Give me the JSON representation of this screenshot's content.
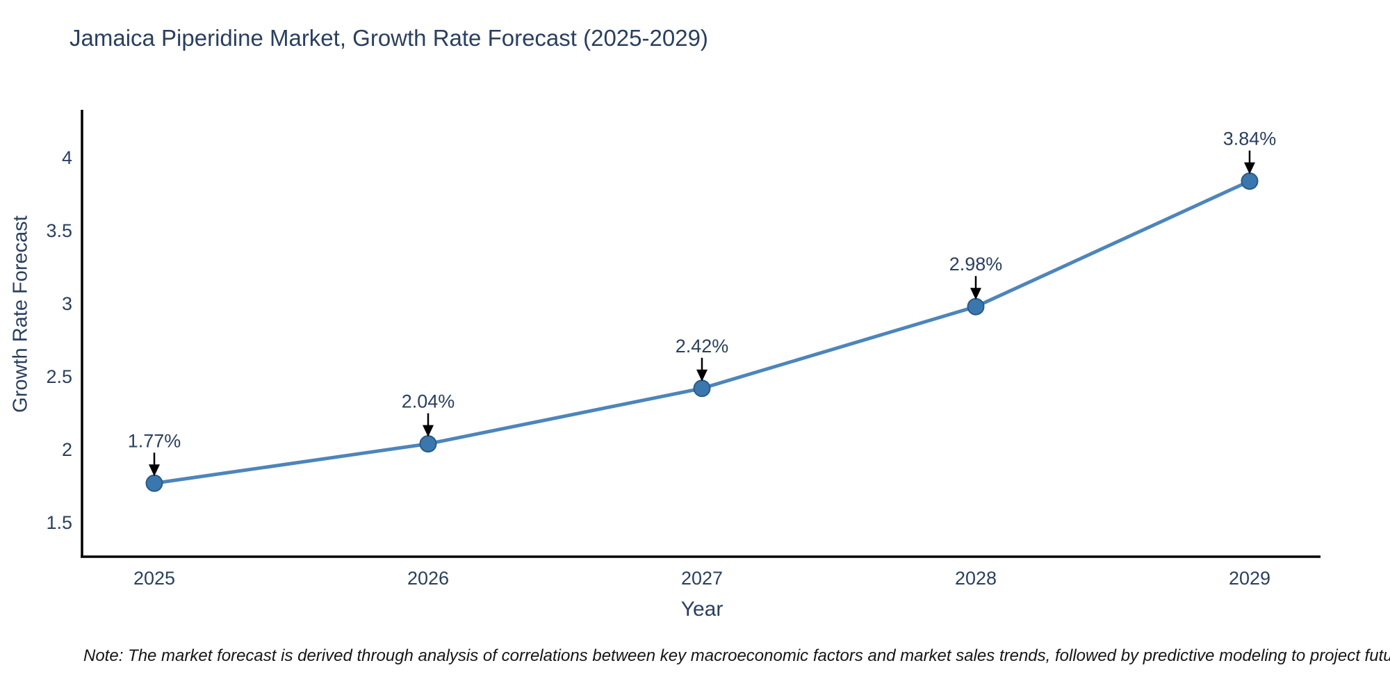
{
  "title": "Jamaica Piperidine Market, Growth Rate Forecast (2025-2029)",
  "note": "Note: The market forecast is derived through analysis of correlations between key macroeconomic factors and market sales trends, followed by predictive modeling to project future sales",
  "chart_data": {
    "type": "line",
    "title": "Jamaica Piperidine Market, Growth Rate Forecast (2025-2029)",
    "xlabel": "Year",
    "ylabel": "Growth Rate Forecast",
    "categories": [
      "2025",
      "2026",
      "2027",
      "2028",
      "2029"
    ],
    "series": [
      {
        "name": "Growth Rate Forecast",
        "values": [
          1.77,
          2.04,
          2.42,
          2.98,
          3.84
        ]
      }
    ],
    "point_labels": [
      "1.77%",
      "2.04%",
      "2.42%",
      "2.98%",
      "3.84%"
    ],
    "yticks": [
      1.5,
      2,
      2.5,
      3,
      3.5,
      4
    ],
    "ylim": [
      1.27,
      4.35
    ],
    "grid": false,
    "legend": "none",
    "annotations_style": "value label above point with downward black arrow",
    "colors": {
      "line": "#4d85bb",
      "marker_fill": "#3b77af",
      "marker_edge": "#2a5a85",
      "text": "#2a3f5f",
      "axis": "#000000",
      "arrow": "#000000",
      "note_text": "#151515"
    }
  }
}
